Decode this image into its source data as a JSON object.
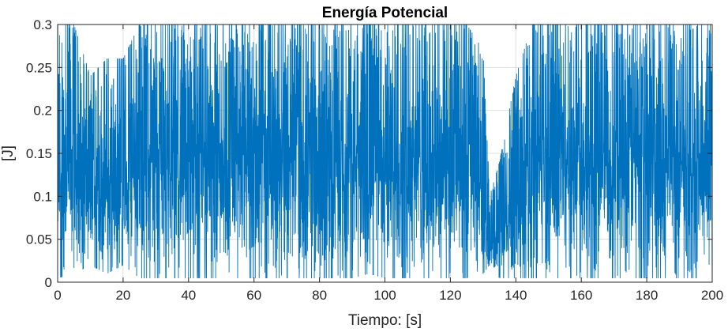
{
  "chart_data": {
    "type": "line",
    "title": "Energía Potencial",
    "xlabel": "Tiempo: [s]",
    "ylabel": "[J]",
    "xlim": [
      0,
      200
    ],
    "ylim": [
      0,
      0.3
    ],
    "xticks": [
      0,
      20,
      40,
      60,
      80,
      100,
      120,
      140,
      160,
      180,
      200
    ],
    "yticks": [
      0,
      0.05,
      0.1,
      0.15,
      0.2,
      0.25,
      0.3
    ],
    "xtick_labels": [
      "0",
      "20",
      "40",
      "60",
      "80",
      "100",
      "120",
      "140",
      "160",
      "180",
      "200"
    ],
    "ytick_labels": [
      "0",
      "0.05",
      "0.1",
      "0.15",
      "0.2",
      "0.25",
      "0.3"
    ],
    "grid": true,
    "legend": "none",
    "line_color": "#0072BD",
    "series": [
      {
        "x": [
          0,
          5,
          10,
          15,
          20,
          25,
          30,
          35,
          40,
          45,
          50,
          55,
          60,
          65,
          70,
          75,
          80,
          85,
          90,
          95,
          100,
          105,
          110,
          115,
          120,
          125,
          130,
          132,
          135,
          140,
          145,
          150,
          155,
          160,
          165,
          170,
          175,
          180,
          185,
          190,
          195,
          200
        ],
        "y_min": [
          0.005,
          0.01,
          0.02,
          0.01,
          0.02,
          0.005,
          0.005,
          0.005,
          0.005,
          0.005,
          0.005,
          0.005,
          0.005,
          0.005,
          0.005,
          0.005,
          0.005,
          0.005,
          0.005,
          0.01,
          0.005,
          0.005,
          0.005,
          0.005,
          0.005,
          0.005,
          0.01,
          0.02,
          0.005,
          0.005,
          0.005,
          0.005,
          0.005,
          0.005,
          0.005,
          0.005,
          0.005,
          0.005,
          0.005,
          0.005,
          0.005,
          0.005
        ],
        "y_max": [
          0.3,
          0.3,
          0.24,
          0.26,
          0.26,
          0.3,
          0.3,
          0.3,
          0.3,
          0.3,
          0.3,
          0.3,
          0.3,
          0.3,
          0.3,
          0.3,
          0.3,
          0.3,
          0.3,
          0.3,
          0.3,
          0.3,
          0.3,
          0.3,
          0.3,
          0.3,
          0.27,
          0.1,
          0.14,
          0.24,
          0.3,
          0.3,
          0.3,
          0.3,
          0.3,
          0.3,
          0.3,
          0.3,
          0.3,
          0.3,
          0.3,
          0.3
        ],
        "y_mean": [
          0.13,
          0.13,
          0.11,
          0.11,
          0.11,
          0.14,
          0.15,
          0.15,
          0.15,
          0.15,
          0.15,
          0.15,
          0.15,
          0.15,
          0.15,
          0.15,
          0.15,
          0.15,
          0.15,
          0.15,
          0.14,
          0.14,
          0.14,
          0.14,
          0.14,
          0.14,
          0.1,
          0.04,
          0.06,
          0.11,
          0.15,
          0.15,
          0.15,
          0.15,
          0.15,
          0.15,
          0.15,
          0.15,
          0.15,
          0.15,
          0.15,
          0.15
        ]
      }
    ]
  }
}
